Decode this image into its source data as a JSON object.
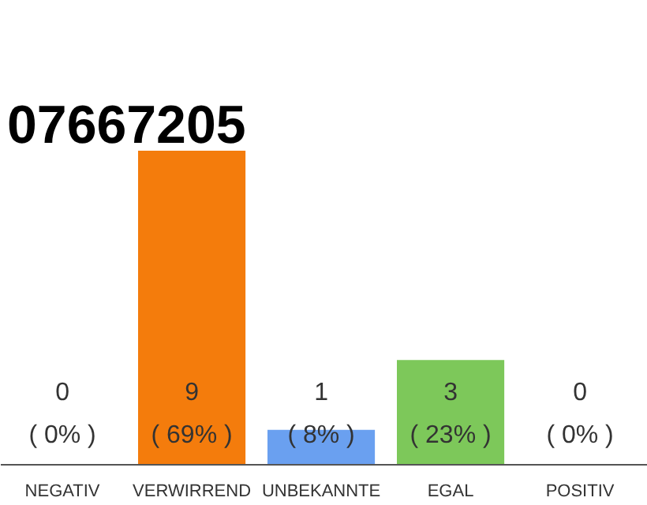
{
  "chart_data": {
    "type": "bar",
    "title": "07667205",
    "tick_labels": "x",
    "categories": [
      "NEGATIV",
      "VERWIRREND",
      "UNBEKANNTE",
      "EGAL",
      "POSITIV"
    ],
    "values": [
      0,
      9,
      1,
      3,
      0
    ],
    "colors": [
      "#f0f0f0",
      "#f47c0c",
      "#6aa0f0",
      "#7dc85a",
      "#f0f0f0"
    ],
    "value_labels": [
      "0\n( 0% )",
      "9\n( 69% )",
      "1\n( 8% )",
      "3\n( 23% )",
      "0\n( 0% )"
    ],
    "grid": false,
    "legend": false
  }
}
